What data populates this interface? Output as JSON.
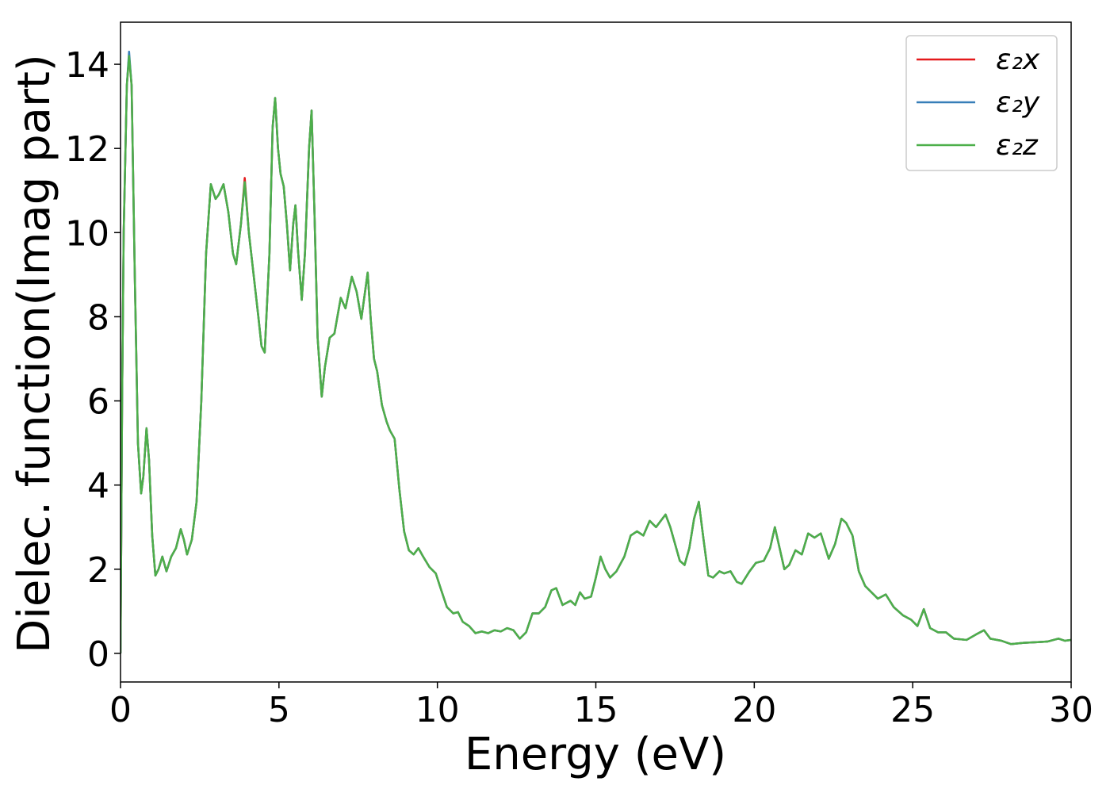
{
  "chart_data": {
    "type": "line",
    "xlabel": "Energy (eV)",
    "ylabel": "Dielec. function(Imag part)",
    "xlim": [
      0,
      30
    ],
    "ylim": [
      -0.68,
      15
    ],
    "xticks": [
      0,
      5,
      10,
      15,
      20,
      25,
      30
    ],
    "yticks": [
      0,
      2,
      4,
      6,
      8,
      10,
      12,
      14
    ],
    "legend": "upper right",
    "x": [
      0,
      0.05,
      0.1,
      0.2,
      0.27,
      0.35,
      0.45,
      0.55,
      0.65,
      0.72,
      0.82,
      0.9,
      1.0,
      1.1,
      1.2,
      1.32,
      1.45,
      1.6,
      1.75,
      1.9,
      2.0,
      2.1,
      2.25,
      2.4,
      2.55,
      2.7,
      2.85,
      3.0,
      3.1,
      3.25,
      3.4,
      3.55,
      3.65,
      3.8,
      3.92,
      4.05,
      4.2,
      4.35,
      4.45,
      4.55,
      4.7,
      4.8,
      4.88,
      4.97,
      5.05,
      5.15,
      5.25,
      5.35,
      5.45,
      5.52,
      5.6,
      5.72,
      5.82,
      5.95,
      6.03,
      6.12,
      6.22,
      6.35,
      6.45,
      6.6,
      6.75,
      6.95,
      7.1,
      7.3,
      7.45,
      7.6,
      7.7,
      7.8,
      7.9,
      8.0,
      8.1,
      8.25,
      8.4,
      8.5,
      8.65,
      8.8,
      8.95,
      9.1,
      9.25,
      9.4,
      9.55,
      9.75,
      9.95,
      10.1,
      10.3,
      10.5,
      10.65,
      10.8,
      11.0,
      11.2,
      11.4,
      11.6,
      11.8,
      12.0,
      12.2,
      12.4,
      12.6,
      12.8,
      13.0,
      13.2,
      13.4,
      13.6,
      13.75,
      13.95,
      14.2,
      14.35,
      14.5,
      14.65,
      14.85,
      15.0,
      15.15,
      15.3,
      15.45,
      15.65,
      15.9,
      16.1,
      16.3,
      16.5,
      16.7,
      16.9,
      17.05,
      17.2,
      17.35,
      17.5,
      17.65,
      17.8,
      17.95,
      18.1,
      18.25,
      18.4,
      18.55,
      18.7,
      18.9,
      19.05,
      19.25,
      19.45,
      19.6,
      19.85,
      20.05,
      20.3,
      20.5,
      20.65,
      20.8,
      20.95,
      21.1,
      21.3,
      21.5,
      21.7,
      21.9,
      22.1,
      22.35,
      22.55,
      22.75,
      22.9,
      23.1,
      23.3,
      23.5,
      23.7,
      23.9,
      24.15,
      24.4,
      24.7,
      24.95,
      25.15,
      25.35,
      25.55,
      25.8,
      26.05,
      26.3,
      26.7,
      27.0,
      27.25,
      27.45,
      27.8,
      28.1,
      28.5,
      29.0,
      29.25,
      29.6,
      29.8,
      30
    ],
    "series": [
      {
        "name": "ε₂x",
        "color": "#e41a1c",
        "values": [
          0,
          6,
          10,
          13.5,
          14.2,
          13.5,
          9,
          5,
          3.8,
          4.2,
          5.35,
          4.6,
          2.8,
          1.85,
          2.0,
          2.3,
          1.95,
          2.3,
          2.5,
          2.95,
          2.7,
          2.35,
          2.7,
          3.6,
          6,
          9.5,
          11.15,
          10.8,
          10.9,
          11.15,
          10.5,
          9.5,
          9.25,
          10.2,
          11.3,
          10,
          9,
          8,
          7.3,
          7.15,
          9.5,
          12.5,
          13.2,
          12,
          11.4,
          11.1,
          10.2,
          9.1,
          10.2,
          10.65,
          9.6,
          8.4,
          9.5,
          12,
          12.9,
          10.5,
          7.5,
          6.1,
          6.8,
          7.5,
          7.6,
          8.45,
          8.2,
          8.95,
          8.6,
          7.95,
          8.5,
          9.05,
          7.9,
          7,
          6.7,
          5.9,
          5.5,
          5.3,
          5.1,
          3.9,
          2.9,
          2.45,
          2.35,
          2.5,
          2.3,
          2.05,
          1.9,
          1.55,
          1.1,
          0.95,
          0.98,
          0.75,
          0.65,
          0.48,
          0.52,
          0.48,
          0.55,
          0.52,
          0.6,
          0.55,
          0.35,
          0.5,
          0.95,
          0.95,
          1.1,
          1.5,
          1.55,
          1.15,
          1.25,
          1.15,
          1.45,
          1.3,
          1.35,
          1.8,
          2.3,
          2.0,
          1.8,
          1.95,
          2.3,
          2.8,
          2.9,
          2.8,
          3.15,
          3.0,
          3.15,
          3.3,
          3.0,
          2.6,
          2.2,
          2.1,
          2.5,
          3.2,
          3.6,
          2.7,
          1.85,
          1.8,
          1.95,
          1.9,
          1.95,
          1.7,
          1.65,
          1.95,
          2.15,
          2.2,
          2.5,
          3.0,
          2.5,
          2.0,
          2.1,
          2.45,
          2.35,
          2.85,
          2.75,
          2.85,
          2.25,
          2.6,
          3.2,
          3.1,
          2.8,
          1.95,
          1.6,
          1.45,
          1.3,
          1.4,
          1.1,
          0.9,
          0.8,
          0.65,
          1.05,
          0.6,
          0.5,
          0.5,
          0.35,
          0.32,
          0.45,
          0.55,
          0.35,
          0.3,
          0.22,
          0.25,
          0.27,
          0.28,
          0.35,
          0.3,
          0.32
        ]
      },
      {
        "name": "ε₂y",
        "color": "#377eb8",
        "values": [
          0,
          6,
          10,
          13.5,
          14.3,
          13.5,
          9,
          5,
          3.8,
          4.2,
          5.35,
          4.6,
          2.8,
          1.85,
          2.0,
          2.3,
          1.95,
          2.3,
          2.5,
          2.95,
          2.7,
          2.35,
          2.7,
          3.6,
          6,
          9.5,
          11.15,
          10.8,
          10.9,
          11.15,
          10.5,
          9.5,
          9.25,
          10.2,
          11.2,
          10,
          9,
          8,
          7.3,
          7.15,
          9.5,
          12.5,
          13.2,
          12,
          11.4,
          11.1,
          10.2,
          9.1,
          10.2,
          10.65,
          9.6,
          8.4,
          9.5,
          12,
          12.9,
          10.5,
          7.5,
          6.1,
          6.8,
          7.5,
          7.6,
          8.45,
          8.2,
          8.95,
          8.6,
          7.95,
          8.5,
          9.05,
          7.9,
          7,
          6.7,
          5.9,
          5.5,
          5.3,
          5.1,
          3.9,
          2.9,
          2.45,
          2.35,
          2.5,
          2.3,
          2.05,
          1.9,
          1.55,
          1.1,
          0.95,
          0.98,
          0.75,
          0.65,
          0.48,
          0.52,
          0.48,
          0.55,
          0.52,
          0.6,
          0.55,
          0.35,
          0.5,
          0.95,
          0.95,
          1.1,
          1.5,
          1.55,
          1.15,
          1.25,
          1.15,
          1.45,
          1.3,
          1.35,
          1.8,
          2.3,
          2.0,
          1.8,
          1.95,
          2.3,
          2.8,
          2.9,
          2.8,
          3.15,
          3.0,
          3.15,
          3.3,
          3.0,
          2.6,
          2.2,
          2.1,
          2.5,
          3.2,
          3.6,
          2.7,
          1.85,
          1.8,
          1.95,
          1.9,
          1.95,
          1.7,
          1.65,
          1.95,
          2.15,
          2.2,
          2.5,
          3.0,
          2.5,
          2.0,
          2.1,
          2.45,
          2.35,
          2.85,
          2.75,
          2.85,
          2.25,
          2.6,
          3.2,
          3.1,
          2.8,
          1.95,
          1.6,
          1.45,
          1.3,
          1.4,
          1.1,
          0.9,
          0.8,
          0.65,
          1.05,
          0.6,
          0.5,
          0.5,
          0.35,
          0.32,
          0.45,
          0.55,
          0.35,
          0.3,
          0.22,
          0.25,
          0.27,
          0.28,
          0.35,
          0.3,
          0.32
        ]
      },
      {
        "name": "ε₂z",
        "color": "#4daf4a",
        "values": [
          0,
          6,
          10,
          13.5,
          14.2,
          13.5,
          9,
          5,
          3.8,
          4.2,
          5.35,
          4.6,
          2.8,
          1.85,
          2.0,
          2.3,
          1.95,
          2.3,
          2.5,
          2.95,
          2.7,
          2.35,
          2.7,
          3.6,
          6,
          9.5,
          11.15,
          10.8,
          10.9,
          11.15,
          10.5,
          9.5,
          9.25,
          10.2,
          11.2,
          10,
          9,
          8,
          7.3,
          7.15,
          9.5,
          12.5,
          13.2,
          12,
          11.4,
          11.1,
          10.2,
          9.1,
          10.2,
          10.65,
          9.6,
          8.4,
          9.5,
          12,
          12.9,
          10.5,
          7.5,
          6.1,
          6.8,
          7.5,
          7.6,
          8.45,
          8.2,
          8.95,
          8.6,
          7.95,
          8.5,
          9.05,
          7.9,
          7,
          6.7,
          5.9,
          5.5,
          5.3,
          5.1,
          3.9,
          2.9,
          2.45,
          2.35,
          2.5,
          2.3,
          2.05,
          1.9,
          1.55,
          1.1,
          0.95,
          0.98,
          0.75,
          0.65,
          0.48,
          0.52,
          0.48,
          0.55,
          0.52,
          0.6,
          0.55,
          0.35,
          0.5,
          0.95,
          0.95,
          1.1,
          1.5,
          1.55,
          1.15,
          1.25,
          1.15,
          1.45,
          1.3,
          1.35,
          1.8,
          2.3,
          2.0,
          1.8,
          1.95,
          2.3,
          2.8,
          2.9,
          2.8,
          3.15,
          3.0,
          3.15,
          3.3,
          3.0,
          2.6,
          2.2,
          2.1,
          2.5,
          3.2,
          3.6,
          2.7,
          1.85,
          1.8,
          1.95,
          1.9,
          1.95,
          1.7,
          1.65,
          1.95,
          2.15,
          2.2,
          2.5,
          3.0,
          2.5,
          2.0,
          2.1,
          2.45,
          2.35,
          2.85,
          2.75,
          2.85,
          2.25,
          2.6,
          3.2,
          3.1,
          2.8,
          1.95,
          1.6,
          1.45,
          1.3,
          1.4,
          1.1,
          0.9,
          0.8,
          0.65,
          1.05,
          0.6,
          0.5,
          0.5,
          0.35,
          0.32,
          0.45,
          0.55,
          0.35,
          0.3,
          0.22,
          0.25,
          0.27,
          0.28,
          0.35,
          0.3,
          0.32
        ]
      }
    ]
  }
}
